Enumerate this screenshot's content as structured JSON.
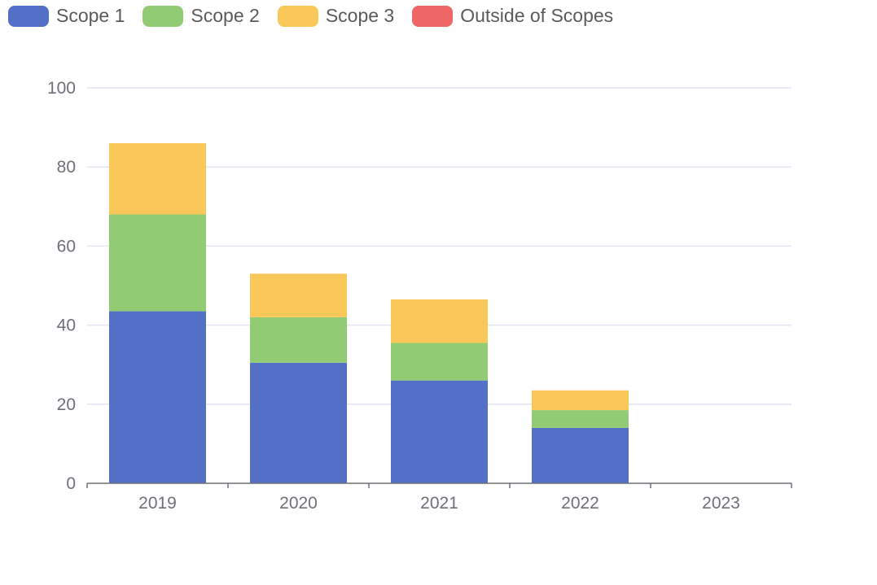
{
  "legend": [
    {
      "label": "Scope 1",
      "color": "#5470c6"
    },
    {
      "label": "Scope 2",
      "color": "#91cc75"
    },
    {
      "label": "Scope 3",
      "color": "#fac858"
    },
    {
      "label": "Outside of Scopes",
      "color": "#ee6666"
    }
  ],
  "chart_data": {
    "type": "bar",
    "stacked": true,
    "categories": [
      "2019",
      "2020",
      "2021",
      "2022",
      "2023"
    ],
    "series": [
      {
        "name": "Scope 1",
        "color": "#5470c6",
        "values": [
          43.5,
          30.5,
          26,
          14,
          0
        ]
      },
      {
        "name": "Scope 2",
        "color": "#91cc75",
        "values": [
          24.5,
          11.5,
          9.5,
          4.5,
          0
        ]
      },
      {
        "name": "Scope 3",
        "color": "#fac858",
        "values": [
          18,
          11,
          11,
          5,
          0
        ]
      },
      {
        "name": "Outside of Scopes",
        "color": "#ee6666",
        "values": [
          0,
          0,
          0,
          0,
          0
        ]
      }
    ],
    "ylim": [
      0,
      100
    ],
    "yticks": [
      "0",
      "20",
      "40",
      "60",
      "80",
      "100"
    ],
    "grid": true,
    "legend_position": "top-left"
  }
}
